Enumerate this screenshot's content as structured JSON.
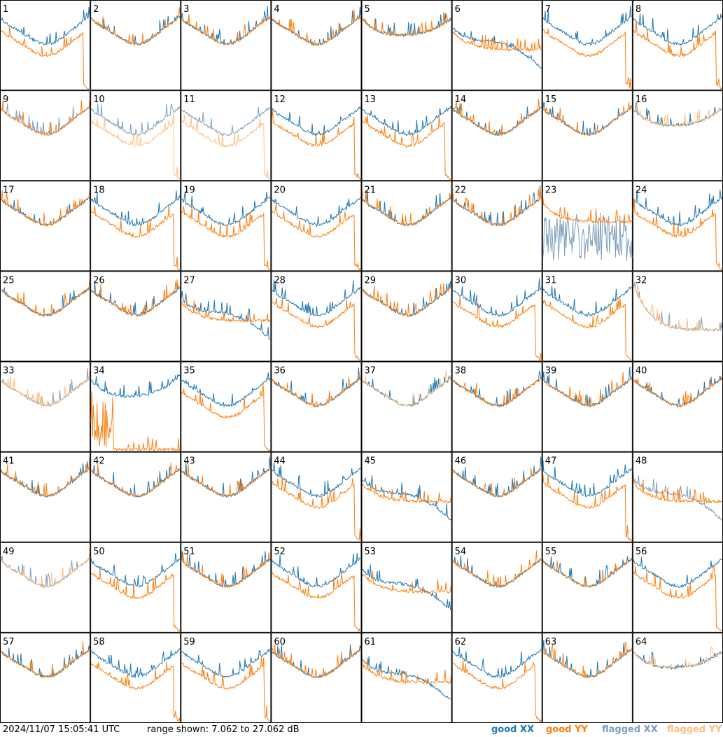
{
  "footer": {
    "timestamp": "2024/11/07 15:05:41 UTC",
    "range": "range shown: 7.062 to 27.062 dB"
  },
  "legend": {
    "good_xx": "good XX",
    "good_yy": "good YY",
    "flagged_xx": "flagged XX",
    "flagged_yy": "flagged YY"
  },
  "colors": {
    "good_xx": "#1f77b4",
    "good_yy": "#ff7f0e",
    "flagged_xx": "#7f9fbf",
    "flagged_yy": "#ffbf80"
  },
  "chart_data": {
    "type": "line",
    "ylim": [
      7.062,
      27.062
    ],
    "grid": {
      "rows": 8,
      "cols": 8
    },
    "panels": [
      {
        "label": "1",
        "xx": "good",
        "yy": "good",
        "style": "a"
      },
      {
        "label": "2",
        "xx": "good",
        "yy": "good",
        "style": "b"
      },
      {
        "label": "3",
        "xx": "good",
        "yy": "good",
        "style": "b"
      },
      {
        "label": "4",
        "xx": "good",
        "yy": "good",
        "style": "b"
      },
      {
        "label": "5",
        "xx": "good",
        "yy": "good",
        "style": "d"
      },
      {
        "label": "6",
        "xx": "good",
        "yy": "good",
        "style": "c"
      },
      {
        "label": "7",
        "xx": "good",
        "yy": "good",
        "style": "a"
      },
      {
        "label": "8",
        "xx": "good",
        "yy": "good",
        "style": "a"
      },
      {
        "label": "9",
        "xx": "flagged",
        "yy": "good",
        "style": "e"
      },
      {
        "label": "10",
        "xx": "flagged",
        "yy": "flagged",
        "style": "a"
      },
      {
        "label": "11",
        "xx": "flagged",
        "yy": "flagged",
        "style": "a"
      },
      {
        "label": "12",
        "xx": "good",
        "yy": "good",
        "style": "a"
      },
      {
        "label": "13",
        "xx": "good",
        "yy": "good",
        "style": "a"
      },
      {
        "label": "14",
        "xx": "good",
        "yy": "good",
        "style": "b"
      },
      {
        "label": "15",
        "xx": "good",
        "yy": "good",
        "style": "b"
      },
      {
        "label": "16",
        "xx": "good",
        "yy": "flagged",
        "style": "d"
      },
      {
        "label": "17",
        "xx": "good",
        "yy": "good",
        "style": "b"
      },
      {
        "label": "18",
        "xx": "good",
        "yy": "good",
        "style": "a"
      },
      {
        "label": "19",
        "xx": "good",
        "yy": "good",
        "style": "a"
      },
      {
        "label": "20",
        "xx": "good",
        "yy": "good",
        "style": "a"
      },
      {
        "label": "21",
        "xx": "good",
        "yy": "good",
        "style": "b"
      },
      {
        "label": "22",
        "xx": "good",
        "yy": "good",
        "style": "b"
      },
      {
        "label": "23",
        "xx": "flagged",
        "yy": "good",
        "style": "f"
      },
      {
        "label": "24",
        "xx": "good",
        "yy": "good",
        "style": "a"
      },
      {
        "label": "25",
        "xx": "good",
        "yy": "good",
        "style": "b"
      },
      {
        "label": "26",
        "xx": "good",
        "yy": "good",
        "style": "b"
      },
      {
        "label": "27",
        "xx": "good",
        "yy": "good",
        "style": "c"
      },
      {
        "label": "28",
        "xx": "good",
        "yy": "good",
        "style": "a"
      },
      {
        "label": "29",
        "xx": "good",
        "yy": "good",
        "style": "b"
      },
      {
        "label": "30",
        "xx": "good",
        "yy": "good",
        "style": "a"
      },
      {
        "label": "31",
        "xx": "good",
        "yy": "good",
        "style": "a"
      },
      {
        "label": "32",
        "xx": "flagged",
        "yy": "flagged",
        "style": "g"
      },
      {
        "label": "33",
        "xx": "flagged",
        "yy": "flagged",
        "style": "b"
      },
      {
        "label": "34",
        "xx": "good",
        "yy": "good",
        "style": "h"
      },
      {
        "label": "35",
        "xx": "good",
        "yy": "good",
        "style": "a"
      },
      {
        "label": "36",
        "xx": "good",
        "yy": "good",
        "style": "b"
      },
      {
        "label": "37",
        "xx": "good",
        "yy": "flagged",
        "style": "b"
      },
      {
        "label": "38",
        "xx": "good",
        "yy": "good",
        "style": "b"
      },
      {
        "label": "39",
        "xx": "good",
        "yy": "good",
        "style": "e2"
      },
      {
        "label": "40",
        "xx": "good",
        "yy": "good",
        "style": "b"
      },
      {
        "label": "41",
        "xx": "good",
        "yy": "good",
        "style": "b"
      },
      {
        "label": "42",
        "xx": "good",
        "yy": "good",
        "style": "b"
      },
      {
        "label": "43",
        "xx": "good",
        "yy": "good",
        "style": "b"
      },
      {
        "label": "44",
        "xx": "good",
        "yy": "good",
        "style": "a"
      },
      {
        "label": "45",
        "xx": "good",
        "yy": "good",
        "style": "c"
      },
      {
        "label": "46",
        "xx": "good",
        "yy": "good",
        "style": "b"
      },
      {
        "label": "47",
        "xx": "good",
        "yy": "good",
        "style": "a"
      },
      {
        "label": "48",
        "xx": "flagged",
        "yy": "good",
        "style": "c"
      },
      {
        "label": "49",
        "xx": "flagged",
        "yy": "flagged",
        "style": "b"
      },
      {
        "label": "50",
        "xx": "good",
        "yy": "good",
        "style": "a"
      },
      {
        "label": "51",
        "xx": "good",
        "yy": "good",
        "style": "b"
      },
      {
        "label": "52",
        "xx": "good",
        "yy": "good",
        "style": "a"
      },
      {
        "label": "53",
        "xx": "good",
        "yy": "good",
        "style": "c"
      },
      {
        "label": "54",
        "xx": "good",
        "yy": "good",
        "style": "b"
      },
      {
        "label": "55",
        "xx": "good",
        "yy": "good",
        "style": "e2"
      },
      {
        "label": "56",
        "xx": "good",
        "yy": "good",
        "style": "a"
      },
      {
        "label": "57",
        "xx": "good",
        "yy": "good",
        "style": "b"
      },
      {
        "label": "58",
        "xx": "good",
        "yy": "good",
        "style": "a"
      },
      {
        "label": "59",
        "xx": "good",
        "yy": "good",
        "style": "a"
      },
      {
        "label": "60",
        "xx": "good",
        "yy": "good",
        "style": "b"
      },
      {
        "label": "61",
        "xx": "good",
        "yy": "good",
        "style": "c"
      },
      {
        "label": "62",
        "xx": "good",
        "yy": "good",
        "style": "a"
      },
      {
        "label": "63",
        "xx": "good",
        "yy": "good",
        "style": "b"
      },
      {
        "label": "64",
        "xx": "good",
        "yy": "flagged",
        "style": "d"
      }
    ]
  }
}
